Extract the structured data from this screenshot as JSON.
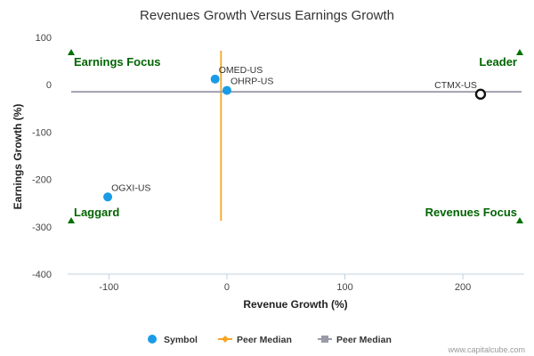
{
  "chart_data": {
    "type": "scatter",
    "title": "Revenues Growth Versus Earnings Growth",
    "xlabel": "Revenue Growth (%)",
    "ylabel": "Earnings Growth (%)",
    "xlim": [
      -135,
      252
    ],
    "ylim": [
      -400,
      100
    ],
    "xticks": [
      -100,
      0,
      100,
      200
    ],
    "yticks": [
      100,
      0,
      -100,
      -200,
      -300,
      -400
    ],
    "grid": false,
    "points": [
      {
        "label": "OMED-US",
        "x": -10,
        "y": 12,
        "color": "#1a9be6",
        "style": "filled"
      },
      {
        "label": "OHRP-US",
        "x": 0,
        "y": -12,
        "color": "#1a9be6",
        "style": "filled"
      },
      {
        "label": "CTMX-US",
        "x": 215,
        "y": -20,
        "color": "#111111",
        "style": "hollow"
      },
      {
        "label": "OGXI-US",
        "x": -101,
        "y": -237,
        "color": "#1a9be6",
        "style": "filled"
      }
    ],
    "peer_median": {
      "x": -5,
      "y": -15,
      "x_line_color": "#f5a623",
      "y_line_color": "#9a9aa8"
    },
    "quadrants": [
      {
        "label": "Earnings Focus",
        "position": "top-left"
      },
      {
        "label": "Leader",
        "position": "top-right"
      },
      {
        "label": "Laggard",
        "position": "bottom-left"
      },
      {
        "label": "Revenues Focus",
        "position": "bottom-right"
      }
    ],
    "legend": {
      "placement": "bottom",
      "items": [
        {
          "label": "Symbol",
          "marker": "circle",
          "color": "#1a9be6"
        },
        {
          "label": "Peer Median",
          "marker": "diamond",
          "color": "#f5a623"
        },
        {
          "label": "Peer Median",
          "marker": "square",
          "color": "#9a9aa8"
        }
      ]
    },
    "credit": "www.capitalcube.com"
  }
}
